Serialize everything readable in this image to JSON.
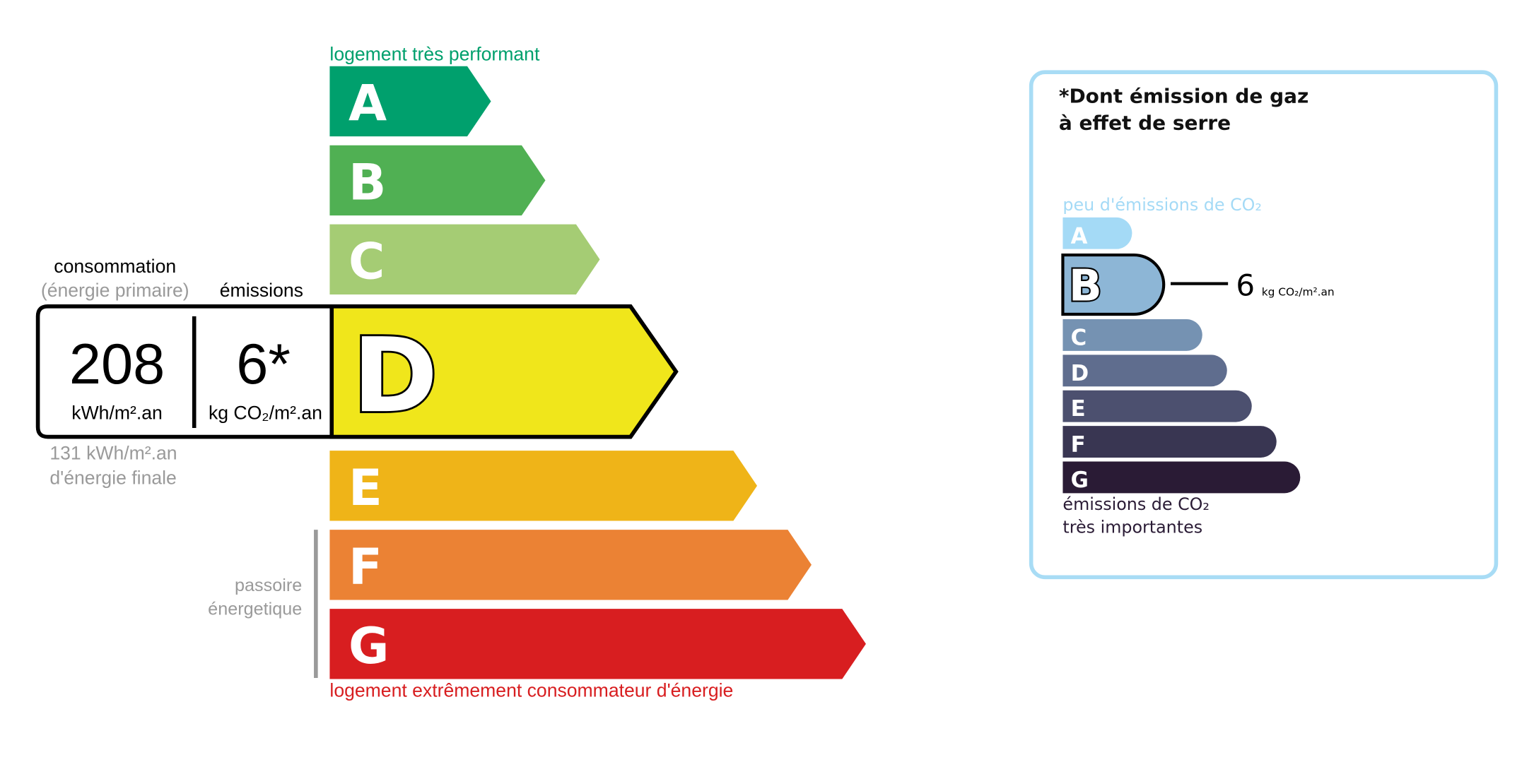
{
  "energy": {
    "top_label": "logement très performant",
    "bottom_label": "logement extrêmement consommateur d'énergie",
    "passoire_line1": "passoire",
    "passoire_line2": "énergetique",
    "classes": [
      {
        "letter": "A",
        "color": "#00a06d"
      },
      {
        "letter": "B",
        "color": "#50b053"
      },
      {
        "letter": "C",
        "color": "#a5cc74"
      },
      {
        "letter": "D",
        "color": "#f0e61b"
      },
      {
        "letter": "E",
        "color": "#efb418"
      },
      {
        "letter": "F",
        "color": "#eb8234"
      },
      {
        "letter": "G",
        "color": "#d81e20"
      }
    ],
    "current_class": "D",
    "consumption_label": "consommation",
    "consumption_sublabel": "(énergie primaire)",
    "emissions_label": "émissions",
    "consumption_value": "208",
    "consumption_unit": "kWh/m².an",
    "emissions_value": "6*",
    "emissions_unit": "kg CO₂/m².an",
    "final_energy_value": "131 kWh/m².an",
    "final_energy_label": "d'énergie finale"
  },
  "ges": {
    "title_line1": "*Dont émission de gaz",
    "title_line2": "à effet de serre",
    "top_label": "peu d'émissions de CO₂",
    "bottom_label_line1": "émissions de CO₂",
    "bottom_label_line2": "très importantes",
    "classes": [
      {
        "letter": "A",
        "color": "#a4daf6"
      },
      {
        "letter": "B",
        "color": "#8db6d6"
      },
      {
        "letter": "C",
        "color": "#7592b2"
      },
      {
        "letter": "D",
        "color": "#5f6d8e"
      },
      {
        "letter": "E",
        "color": "#4c506f"
      },
      {
        "letter": "F",
        "color": "#393652"
      },
      {
        "letter": "G",
        "color": "#2a1b35"
      }
    ],
    "current_class": "B",
    "value": "6",
    "unit": "kg CO₂/m².an",
    "border_color": "#a8dcf5"
  }
}
